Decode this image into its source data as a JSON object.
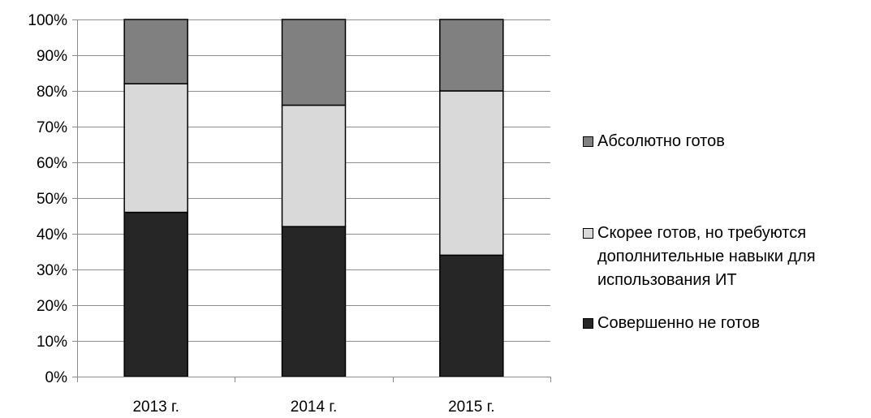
{
  "chart_data": {
    "type": "bar",
    "stacked": true,
    "normalized": true,
    "categories": [
      "2013 г.",
      "2014 г.",
      "2015 г."
    ],
    "series": [
      {
        "name": "Совершенно не готов",
        "values": [
          46,
          42,
          34
        ],
        "color": "#262626"
      },
      {
        "name": "Скорее готов, но требуются дополнительные навыки для использования ИТ",
        "values": [
          36,
          34,
          46
        ],
        "color": "#d9d9d9"
      },
      {
        "name": "Абсолютно готов",
        "values": [
          18,
          24,
          20
        ],
        "color": "#808080"
      }
    ],
    "yticks": [
      "0%",
      "10%",
      "20%",
      "30%",
      "40%",
      "50%",
      "60%",
      "70%",
      "80%",
      "90%",
      "100%"
    ],
    "ylim": [
      0,
      100
    ],
    "grid": true,
    "legend_position": "right"
  }
}
